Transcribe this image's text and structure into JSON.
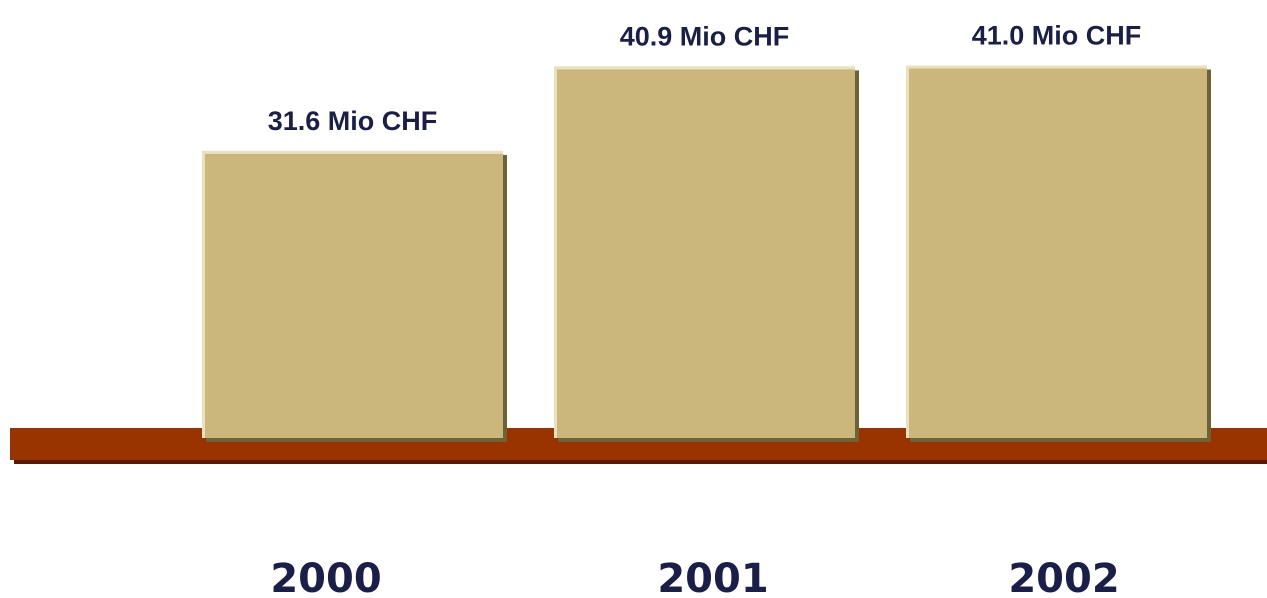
{
  "chart_data": {
    "type": "bar",
    "categories": [
      "2000",
      "2001",
      "2002"
    ],
    "values": [
      31.6,
      40.9,
      41.0
    ],
    "value_labels": [
      "31.6 Mio CHF",
      "40.9 Mio CHF",
      "41.0 Mio CHF"
    ],
    "title": "",
    "xlabel": "",
    "ylabel": "",
    "grid": false,
    "colors": {
      "bar": "#cbb77b",
      "bar_highlight": "#ebe0c0",
      "bar_shadow": "#6f6238",
      "baseline": "#993300",
      "baseline_shadow": "#5a1a00",
      "text": "#1a1f4a"
    }
  }
}
